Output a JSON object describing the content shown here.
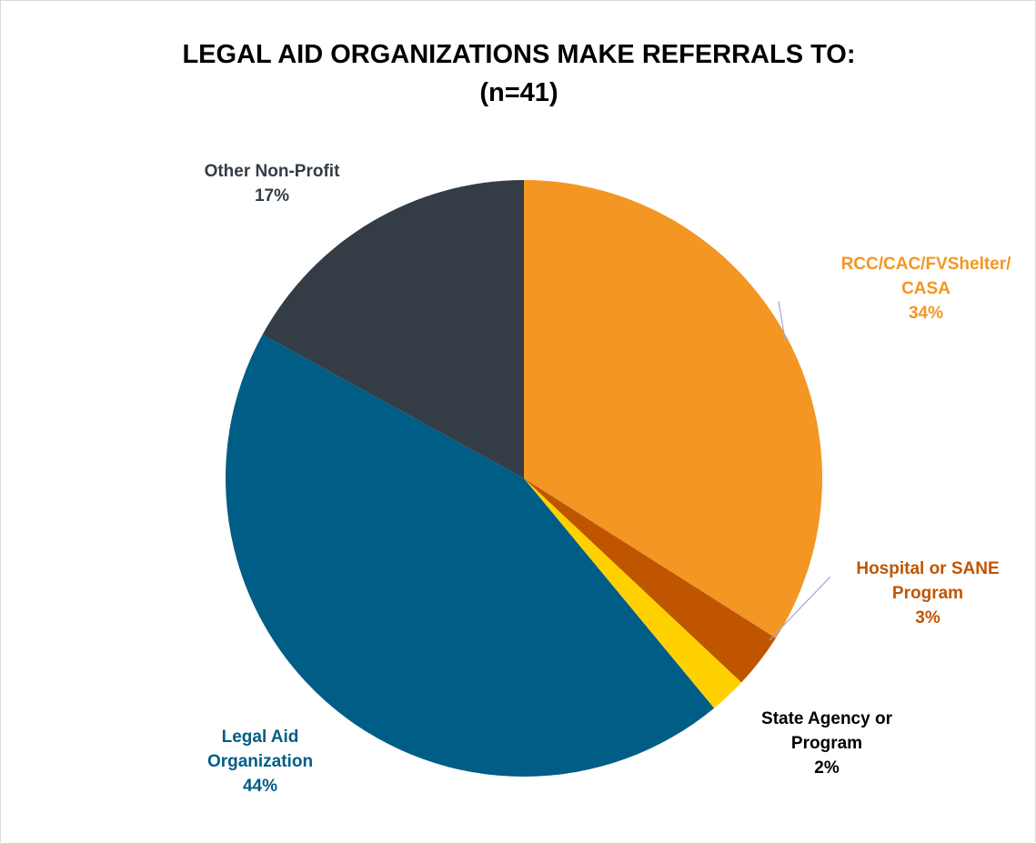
{
  "chart_data": {
    "type": "pie",
    "title": "LEGAL AID ORGANIZATIONS MAKE REFERRALS TO:",
    "subtitle": "(n=41)",
    "legend": "none",
    "slices": [
      {
        "label_lines": [
          "RCC/CAC/FVShelter/",
          "CASA"
        ],
        "label": "RCC/CAC/FVShelter/ CASA",
        "value": 34,
        "pct_label": "34%",
        "color": "#F39624",
        "label_color": "#F39624"
      },
      {
        "label_lines": [
          "Hospital or SANE",
          "Program"
        ],
        "label": "Hospital or SANE Program",
        "value": 3,
        "pct_label": "3%",
        "color": "#C05500",
        "label_color": "#C05500"
      },
      {
        "label_lines": [
          "State Agency or",
          "Program"
        ],
        "label": "State Agency or Program",
        "value": 2,
        "pct_label": "2%",
        "color": "#FFD100",
        "label_color": "#000000"
      },
      {
        "label_lines": [
          "Legal Aid",
          "Organization"
        ],
        "label": "Legal Aid Organization",
        "value": 44,
        "pct_label": "44%",
        "color": "#005D86",
        "label_color": "#005D86"
      },
      {
        "label_lines": [
          "Other Non-Profit"
        ],
        "label": "Other Non-Profit",
        "value": 17,
        "pct_label": "17%",
        "color": "#343D46",
        "label_color": "#343D46"
      }
    ]
  }
}
